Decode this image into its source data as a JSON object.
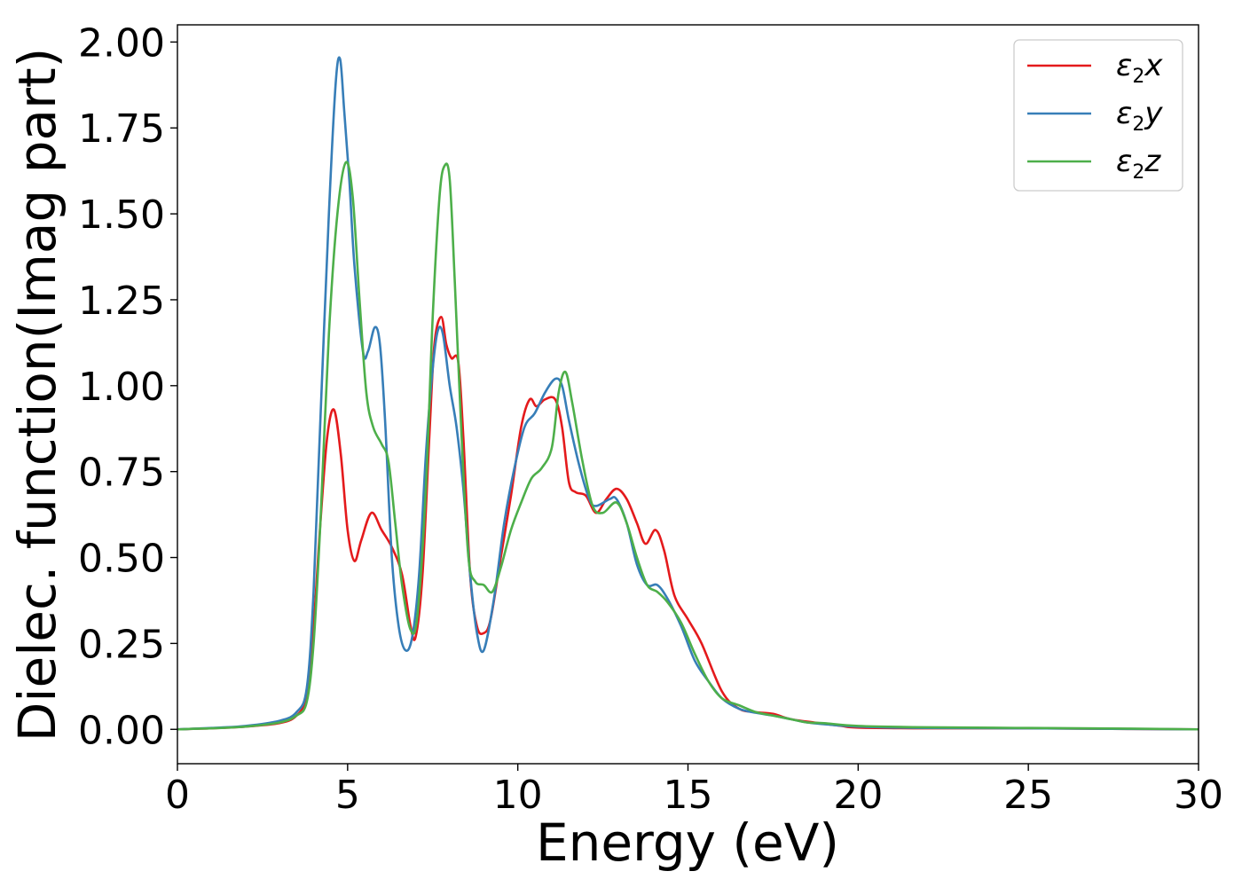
{
  "chart_data": {
    "type": "line",
    "xlabel": "Energy (eV)",
    "ylabel": "Dielec. function(Imag part)",
    "xlim": [
      0,
      30
    ],
    "ylim": [
      -0.1,
      2.05
    ],
    "xticks": [
      "0",
      "5",
      "10",
      "15",
      "20",
      "25",
      "30"
    ],
    "yticks": [
      "0.00",
      "0.25",
      "0.50",
      "0.75",
      "1.00",
      "1.25",
      "1.50",
      "1.75",
      "2.00"
    ],
    "grid": false,
    "legend_position": "top-right",
    "series": [
      {
        "name": "ε2x",
        "symbol": "ε",
        "sub": "2",
        "axis": "x",
        "color": "#e41a1c",
        "x": [
          0,
          1,
          2,
          3,
          3.5,
          3.8,
          4.0,
          4.2,
          4.4,
          4.6,
          4.8,
          5.0,
          5.2,
          5.4,
          5.7,
          6.0,
          6.3,
          6.6,
          6.85,
          7.0,
          7.2,
          7.4,
          7.55,
          7.75,
          7.9,
          8.05,
          8.25,
          8.4,
          8.6,
          8.8,
          9.0,
          9.2,
          9.5,
          9.8,
          10.1,
          10.35,
          10.55,
          10.8,
          11.1,
          11.3,
          11.5,
          11.7,
          12.0,
          12.3,
          12.6,
          12.9,
          13.2,
          13.5,
          13.75,
          14.05,
          14.3,
          14.6,
          15.0,
          15.4,
          16.0,
          16.5,
          17.0,
          17.5,
          18.0,
          18.7,
          19.5,
          20.0,
          22.0,
          25.0,
          28.0,
          30.0
        ],
        "y": [
          0.0,
          0.003,
          0.008,
          0.018,
          0.04,
          0.1,
          0.3,
          0.6,
          0.85,
          0.93,
          0.8,
          0.58,
          0.49,
          0.55,
          0.63,
          0.58,
          0.53,
          0.45,
          0.3,
          0.27,
          0.45,
          0.85,
          1.12,
          1.2,
          1.12,
          1.08,
          1.07,
          0.85,
          0.45,
          0.3,
          0.28,
          0.32,
          0.5,
          0.68,
          0.88,
          0.96,
          0.94,
          0.96,
          0.96,
          0.88,
          0.72,
          0.69,
          0.68,
          0.63,
          0.67,
          0.7,
          0.67,
          0.6,
          0.54,
          0.58,
          0.52,
          0.39,
          0.32,
          0.25,
          0.11,
          0.06,
          0.05,
          0.045,
          0.03,
          0.02,
          0.01,
          0.005,
          0.003,
          0.003,
          0.001,
          0.0
        ]
      },
      {
        "name": "ε2y",
        "symbol": "ε",
        "sub": "2",
        "axis": "y",
        "color": "#377eb8",
        "x": [
          0,
          1,
          2,
          3,
          3.5,
          3.8,
          4.0,
          4.2,
          4.45,
          4.65,
          4.78,
          4.9,
          5.05,
          5.2,
          5.45,
          5.6,
          5.8,
          5.95,
          6.1,
          6.3,
          6.5,
          6.7,
          6.9,
          7.1,
          7.3,
          7.5,
          7.65,
          7.8,
          8.0,
          8.2,
          8.4,
          8.6,
          8.8,
          9.0,
          9.3,
          9.6,
          9.9,
          10.2,
          10.5,
          10.8,
          11.1,
          11.3,
          11.5,
          11.8,
          12.1,
          12.3,
          12.7,
          12.9,
          13.2,
          13.5,
          13.8,
          14.1,
          14.4,
          14.8,
          15.2,
          15.6,
          16.0,
          16.5,
          17.0,
          17.5,
          18.0,
          18.5,
          19.0,
          20.0,
          22.0,
          25.0,
          28.0,
          30.0
        ],
        "y": [
          0.0,
          0.004,
          0.01,
          0.025,
          0.05,
          0.12,
          0.4,
          0.9,
          1.5,
          1.88,
          1.95,
          1.8,
          1.6,
          1.35,
          1.1,
          1.1,
          1.17,
          1.12,
          0.9,
          0.5,
          0.3,
          0.23,
          0.27,
          0.45,
          0.8,
          1.05,
          1.16,
          1.15,
          1.0,
          0.88,
          0.7,
          0.45,
          0.28,
          0.23,
          0.38,
          0.6,
          0.76,
          0.88,
          0.92,
          0.98,
          1.02,
          1.0,
          0.9,
          0.77,
          0.67,
          0.65,
          0.67,
          0.67,
          0.6,
          0.48,
          0.42,
          0.42,
          0.38,
          0.3,
          0.2,
          0.14,
          0.09,
          0.06,
          0.048,
          0.04,
          0.03,
          0.02,
          0.015,
          0.008,
          0.004,
          0.003,
          0.001,
          0.0
        ]
      },
      {
        "name": "ε2z",
        "symbol": "ε",
        "sub": "2",
        "axis": "z",
        "color": "#4daf4a",
        "x": [
          0,
          1,
          2,
          3,
          3.5,
          3.8,
          4.0,
          4.2,
          4.45,
          4.7,
          4.95,
          5.15,
          5.35,
          5.55,
          5.75,
          6.0,
          6.2,
          6.4,
          6.6,
          6.85,
          7.05,
          7.3,
          7.5,
          7.7,
          7.85,
          8.0,
          8.15,
          8.35,
          8.55,
          8.75,
          9.0,
          9.25,
          9.5,
          9.8,
          10.1,
          10.4,
          10.7,
          11.0,
          11.2,
          11.4,
          11.6,
          11.9,
          12.2,
          12.5,
          12.9,
          13.2,
          13.5,
          13.8,
          14.1,
          14.4,
          14.8,
          15.2,
          15.6,
          16.0,
          16.5,
          17.0,
          17.5,
          18.0,
          18.5,
          19.0,
          20.0,
          22.0,
          25.0,
          28.0,
          30.0
        ],
        "y": [
          0.0,
          0.003,
          0.008,
          0.02,
          0.04,
          0.08,
          0.25,
          0.6,
          1.15,
          1.5,
          1.65,
          1.55,
          1.25,
          0.98,
          0.88,
          0.83,
          0.78,
          0.6,
          0.42,
          0.29,
          0.33,
          0.7,
          1.2,
          1.55,
          1.64,
          1.6,
          1.3,
          0.85,
          0.5,
          0.43,
          0.42,
          0.4,
          0.47,
          0.58,
          0.66,
          0.73,
          0.76,
          0.82,
          0.98,
          1.04,
          0.95,
          0.78,
          0.65,
          0.63,
          0.66,
          0.6,
          0.5,
          0.42,
          0.4,
          0.37,
          0.31,
          0.22,
          0.14,
          0.09,
          0.07,
          0.05,
          0.04,
          0.03,
          0.02,
          0.018,
          0.01,
          0.006,
          0.004,
          0.002,
          0.0
        ]
      }
    ]
  }
}
